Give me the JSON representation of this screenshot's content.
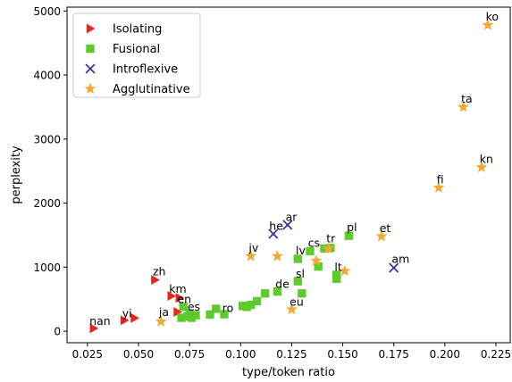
{
  "chart_data": {
    "type": "scatter",
    "xlabel": "type/token ratio",
    "ylabel": "perplexity",
    "xlim": [
      0.015,
      0.232
    ],
    "ylim": [
      -180,
      5060
    ],
    "xticks": [
      "0.025",
      "0.050",
      "0.075",
      "0.100",
      "0.125",
      "0.150",
      "0.175",
      "0.200",
      "0.225"
    ],
    "yticks": [
      "0",
      "1000",
      "2000",
      "3000",
      "4000",
      "5000"
    ],
    "grid": false,
    "legend_position": "top-left",
    "series": [
      {
        "name": "Isolating",
        "marker": "triangle-right",
        "color": "#e8261c",
        "points": [
          {
            "x": 0.028,
            "y": 45
          },
          {
            "x": 0.043,
            "y": 170
          },
          {
            "x": 0.048,
            "y": 205
          },
          {
            "x": 0.058,
            "y": 800
          },
          {
            "x": 0.066,
            "y": 550
          },
          {
            "x": 0.07,
            "y": 520
          },
          {
            "x": 0.069,
            "y": 300
          }
        ]
      },
      {
        "name": "Fusional",
        "marker": "square",
        "color": "#5dcb2c",
        "points": [
          {
            "x": 0.071,
            "y": 210
          },
          {
            "x": 0.072,
            "y": 380
          },
          {
            "x": 0.074,
            "y": 230
          },
          {
            "x": 0.075,
            "y": 280
          },
          {
            "x": 0.076,
            "y": 210
          },
          {
            "x": 0.078,
            "y": 250
          },
          {
            "x": 0.085,
            "y": 260
          },
          {
            "x": 0.088,
            "y": 350
          },
          {
            "x": 0.092,
            "y": 265
          },
          {
            "x": 0.101,
            "y": 395
          },
          {
            "x": 0.103,
            "y": 380
          },
          {
            "x": 0.105,
            "y": 410
          },
          {
            "x": 0.108,
            "y": 470
          },
          {
            "x": 0.112,
            "y": 590
          },
          {
            "x": 0.118,
            "y": 620
          },
          {
            "x": 0.128,
            "y": 780
          },
          {
            "x": 0.13,
            "y": 590
          },
          {
            "x": 0.128,
            "y": 1130
          },
          {
            "x": 0.134,
            "y": 1250
          },
          {
            "x": 0.141,
            "y": 1290
          },
          {
            "x": 0.144,
            "y": 1300
          },
          {
            "x": 0.138,
            "y": 1010
          },
          {
            "x": 0.147,
            "y": 820
          },
          {
            "x": 0.147,
            "y": 880
          },
          {
            "x": 0.153,
            "y": 1490
          }
        ]
      },
      {
        "name": "Introflexive",
        "marker": "x",
        "color": "#3a2a9a",
        "points": [
          {
            "x": 0.116,
            "y": 1520
          },
          {
            "x": 0.123,
            "y": 1660
          },
          {
            "x": 0.175,
            "y": 990
          }
        ]
      },
      {
        "name": "Agglutinative",
        "marker": "star",
        "color": "#f7a830",
        "points": [
          {
            "x": 0.061,
            "y": 150
          },
          {
            "x": 0.105,
            "y": 1170
          },
          {
            "x": 0.118,
            "y": 1170
          },
          {
            "x": 0.125,
            "y": 340
          },
          {
            "x": 0.137,
            "y": 1100
          },
          {
            "x": 0.143,
            "y": 1290
          },
          {
            "x": 0.151,
            "y": 940
          },
          {
            "x": 0.169,
            "y": 1480
          },
          {
            "x": 0.197,
            "y": 2240
          },
          {
            "x": 0.209,
            "y": 3500
          },
          {
            "x": 0.218,
            "y": 2560
          },
          {
            "x": 0.221,
            "y": 4780
          }
        ]
      }
    ],
    "annotations": [
      {
        "text": "nan",
        "x": 0.026,
        "y": 100
      },
      {
        "text": "yi",
        "x": 0.042,
        "y": 220
      },
      {
        "text": "ja",
        "x": 0.06,
        "y": 240
      },
      {
        "text": "zh",
        "x": 0.057,
        "y": 870
      },
      {
        "text": "km",
        "x": 0.065,
        "y": 600
      },
      {
        "text": "en",
        "x": 0.069,
        "y": 440
      },
      {
        "text": "es",
        "x": 0.074,
        "y": 320
      },
      {
        "text": "ro",
        "x": 0.091,
        "y": 300
      },
      {
        "text": "jv",
        "x": 0.104,
        "y": 1240
      },
      {
        "text": "de",
        "x": 0.117,
        "y": 680
      },
      {
        "text": "sl",
        "x": 0.127,
        "y": 840
      },
      {
        "text": "eu",
        "x": 0.124,
        "y": 400
      },
      {
        "text": "lv",
        "x": 0.127,
        "y": 1200
      },
      {
        "text": "he",
        "x": 0.114,
        "y": 1580
      },
      {
        "text": "ar",
        "x": 0.122,
        "y": 1720
      },
      {
        "text": "cs",
        "x": 0.133,
        "y": 1320
      },
      {
        "text": "tr",
        "x": 0.142,
        "y": 1390
      },
      {
        "text": "lt",
        "x": 0.146,
        "y": 940
      },
      {
        "text": "pl",
        "x": 0.152,
        "y": 1560
      },
      {
        "text": "et",
        "x": 0.168,
        "y": 1550
      },
      {
        "text": "am",
        "x": 0.174,
        "y": 1070
      },
      {
        "text": "fi",
        "x": 0.196,
        "y": 2310
      },
      {
        "text": "ta",
        "x": 0.208,
        "y": 3570
      },
      {
        "text": "kn",
        "x": 0.217,
        "y": 2630
      },
      {
        "text": "ko",
        "x": 0.22,
        "y": 4850
      }
    ]
  }
}
